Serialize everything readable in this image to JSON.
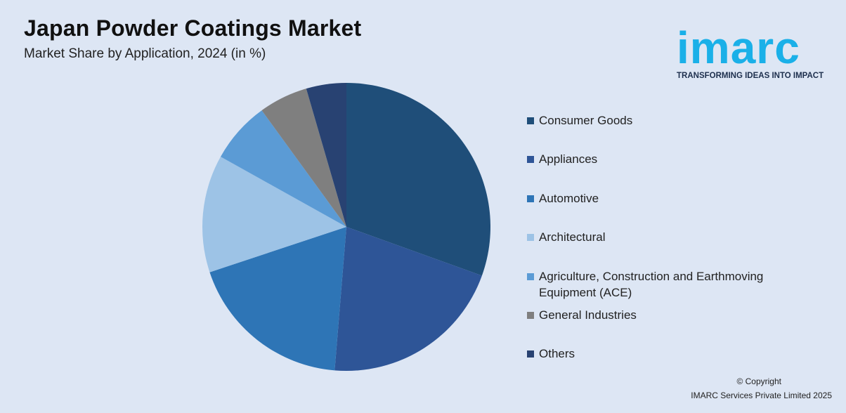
{
  "header": {
    "title": "Japan Powder Coatings Market",
    "subtitle": "Market Share by Application, 2024 (in %)"
  },
  "logo": {
    "name": "imarc",
    "tagline": "TRANSFORMING IDEAS INTO IMPACT",
    "color": "#1ab0e8"
  },
  "chart_data": {
    "type": "pie",
    "title": "Japan Powder Coatings Market",
    "subtitle": "Market Share by Application, 2024 (in %)",
    "legend_position": "right",
    "categories": [
      "Consumer Goods",
      "Appliances",
      "Automotive",
      "Architectural",
      "Agriculture, Construction and Earthmoving Equipment (ACE)",
      "General Industries",
      "Others"
    ],
    "values": [
      30.5,
      20.8,
      18.6,
      13.2,
      6.9,
      5.5,
      4.5
    ],
    "colors": [
      "#1f4e79",
      "#2e5597",
      "#2e75b6",
      "#9dc3e6",
      "#5b9bd5",
      "#7f7f7f",
      "#284272"
    ]
  },
  "footer": {
    "copyright_line1": "© Copyright",
    "copyright_line2": "IMARC Services Private Limited 2025"
  }
}
